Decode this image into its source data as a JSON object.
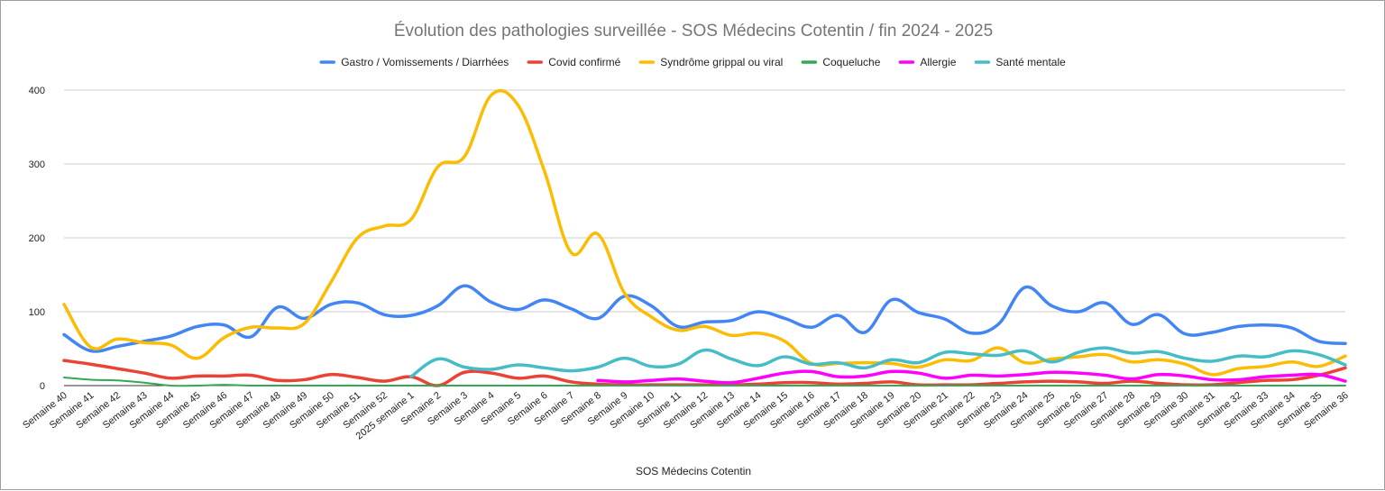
{
  "chart_data": {
    "type": "line",
    "title": "Évolution des pathologies surveillée - SOS Médecins Cotentin / fin 2024 - 2025",
    "xlabel": "SOS Médecins Cotentin",
    "ylabel": "",
    "ylim": [
      0,
      400
    ],
    "yticks": [
      "0",
      "100",
      "200",
      "300",
      "400"
    ],
    "grid": true,
    "legend_position": "top",
    "categories": [
      "Semaine 40",
      "Semaine 41",
      "Semaine 42",
      "Semaine 43",
      "Semaine 44",
      "Semaine 45",
      "Semaine 46",
      "Semaine 47",
      "Semaine 48",
      "Semaine 49",
      "Semaine 50",
      "Semaine 51",
      "Semaine 52",
      "2025 semaine 1",
      "Semaine 2",
      "Semaine 3",
      "Semaine 4",
      "Semaine 5",
      "Semaine 6",
      "Semaine 7",
      "Semaine 8",
      "Semaine 9",
      "Semaine 10",
      "Semaine 11",
      "Semaine 12",
      "Semaine 13",
      "Semaine 14",
      "Semaine 15",
      "Semaine 16",
      "Semaine 17",
      "Semaine 18",
      "Semaine 19",
      "Semaine 20",
      "Semaine 21",
      "Semaine 22",
      "Semaine 23",
      "Semaine 24",
      "Semaine 25",
      "Semaine 26",
      "Semaine 27",
      "Semaine 28",
      "Semaine 29",
      "Semaine 30",
      "Semaine 31",
      "Semaine 32",
      "Semaine 33",
      "Semaine 34",
      "Semaine 35",
      "Semaine 36"
    ],
    "series": [
      {
        "name": "Gastro / Vomissements / Diarrhées",
        "color": "#4285f4",
        "values": [
          69,
          47,
          53,
          60,
          67,
          80,
          82,
          66,
          106,
          91,
          110,
          112,
          96,
          95,
          108,
          135,
          113,
          103,
          116,
          104,
          91,
          121,
          108,
          80,
          86,
          88,
          100,
          91,
          79,
          95,
          72,
          116,
          99,
          90,
          71,
          83,
          133,
          108,
          100,
          112,
          83,
          96,
          70,
          72,
          80,
          82,
          78,
          60,
          57
        ]
      },
      {
        "name": "Covid confirmé",
        "color": "#ea4335",
        "values": [
          34,
          29,
          23,
          17,
          10,
          13,
          13,
          14,
          7,
          8,
          15,
          11,
          6,
          12,
          0,
          18,
          17,
          10,
          13,
          5,
          2,
          1,
          1,
          1,
          1,
          1,
          2,
          4,
          4,
          2,
          3,
          5,
          1,
          1,
          1,
          3,
          5,
          6,
          5,
          3,
          6,
          3,
          1,
          1,
          4,
          7,
          8,
          14,
          24
        ]
      },
      {
        "name": "Syndrôme grippal ou viral",
        "color": "#fbbc04",
        "values": [
          110,
          52,
          63,
          58,
          55,
          37,
          65,
          79,
          78,
          84,
          140,
          200,
          216,
          225,
          296,
          310,
          393,
          380,
          290,
          180,
          205,
          125,
          93,
          75,
          80,
          68,
          71,
          60,
          30,
          30,
          31,
          30,
          25,
          35,
          34,
          51,
          31,
          36,
          39,
          42,
          32,
          35,
          29,
          15,
          23,
          26,
          32,
          26,
          40
        ]
      },
      {
        "name": "Coqueluche",
        "color": "#34a853",
        "values": [
          11,
          8,
          7,
          4,
          0,
          0,
          1,
          0,
          0,
          0,
          0,
          0,
          0,
          0,
          0,
          0,
          0,
          0,
          0,
          0,
          0,
          0,
          0,
          0,
          0,
          0,
          0,
          0,
          0,
          0,
          0,
          0,
          0,
          0,
          0,
          0,
          0,
          0,
          0,
          0,
          0,
          0,
          0,
          0,
          0,
          0,
          0,
          0,
          0
        ]
      },
      {
        "name": "Allergie",
        "color": "#ff00ff",
        "values": [
          null,
          null,
          null,
          null,
          null,
          null,
          null,
          null,
          null,
          null,
          null,
          null,
          null,
          null,
          null,
          null,
          null,
          null,
          null,
          null,
          7,
          5,
          7,
          9,
          6,
          4,
          10,
          17,
          19,
          12,
          13,
          19,
          17,
          10,
          14,
          13,
          15,
          18,
          17,
          14,
          9,
          15,
          13,
          8,
          8,
          12,
          14,
          15,
          6
        ]
      },
      {
        "name": "Santé mentale",
        "color": "#46bdc6",
        "values": [
          null,
          null,
          null,
          null,
          null,
          null,
          null,
          null,
          null,
          null,
          null,
          null,
          null,
          12,
          36,
          25,
          22,
          28,
          24,
          20,
          25,
          37,
          26,
          29,
          48,
          36,
          27,
          39,
          29,
          31,
          24,
          35,
          31,
          45,
          43,
          41,
          47,
          32,
          45,
          51,
          44,
          46,
          37,
          33,
          40,
          39,
          47,
          42,
          28
        ]
      }
    ]
  }
}
